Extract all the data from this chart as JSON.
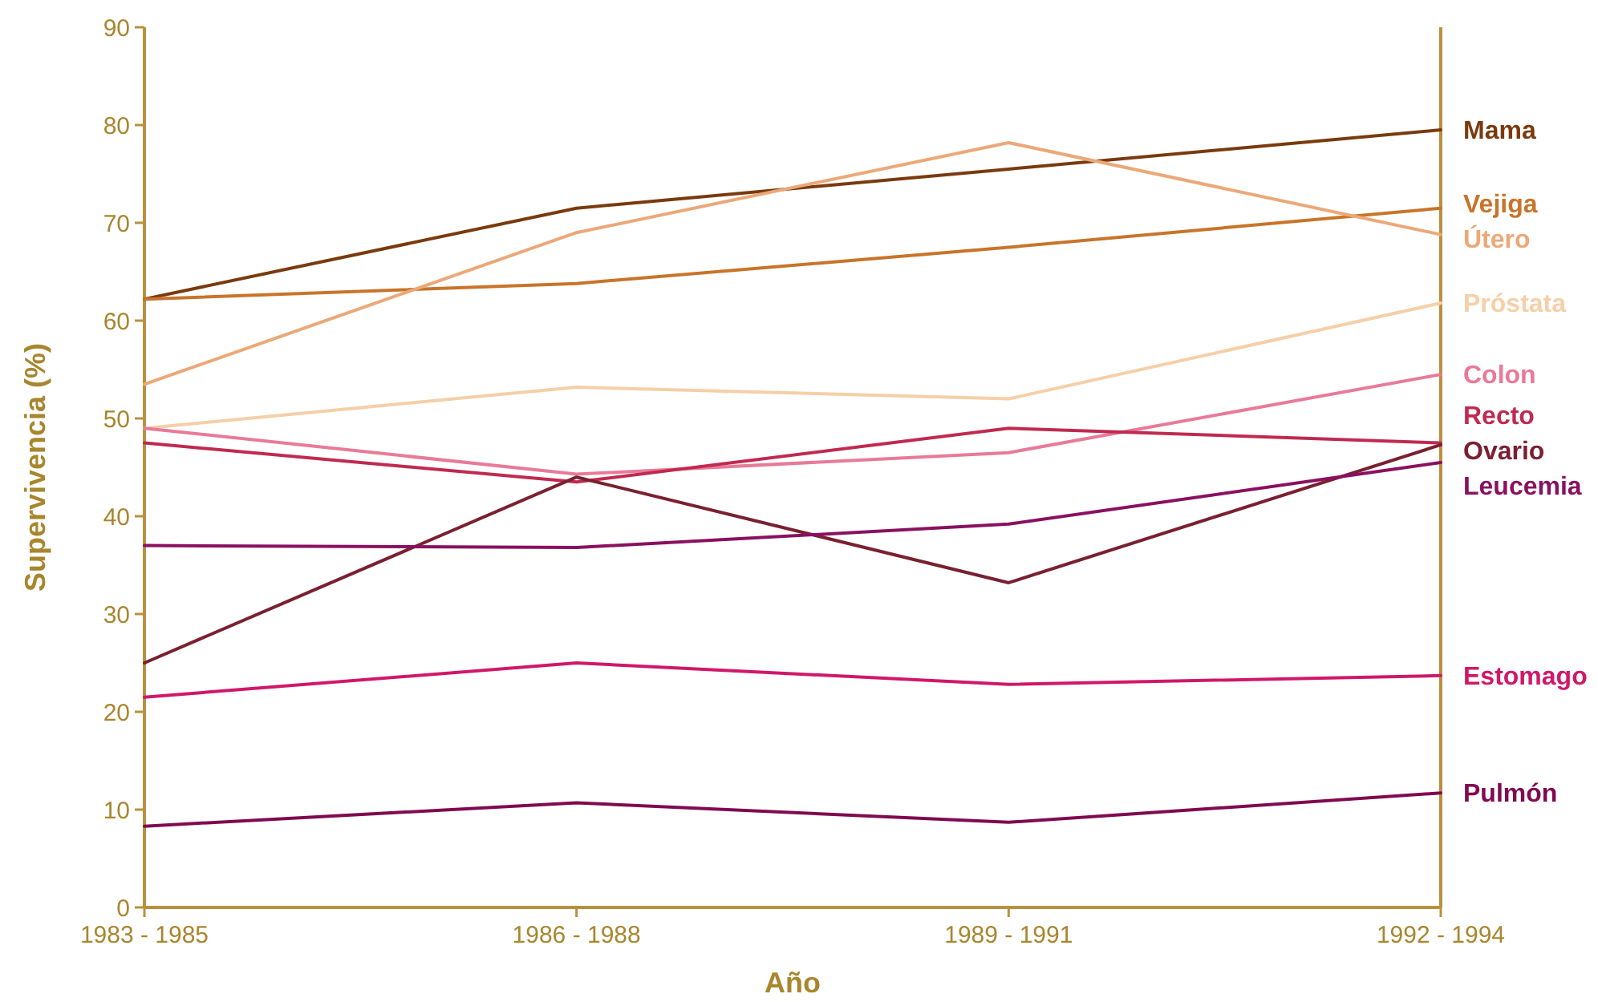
{
  "chart_data": {
    "type": "line",
    "xlabel": "Año",
    "ylabel": "Supervivencia  (%)",
    "categories": [
      "1983 - 1985",
      "1986 - 1988",
      "1989 - 1991",
      "1992 - 1994"
    ],
    "ylim": [
      0,
      90
    ],
    "yticks": [
      0,
      10,
      20,
      30,
      40,
      50,
      60,
      70,
      80,
      90
    ],
    "grid": false,
    "legend": false,
    "marker": "none",
    "line_style": "solid",
    "series": [
      {
        "name": "Mama",
        "color": "#7a3a0e",
        "values": [
          62.2,
          71.5,
          75.5,
          79.5
        ]
      },
      {
        "name": "Vejiga",
        "color": "#c8742a",
        "values": [
          62.2,
          63.8,
          67.5,
          71.5
        ]
      },
      {
        "name": "Útero",
        "color": "#eba878",
        "values": [
          53.5,
          69,
          78.2,
          68.8
        ]
      },
      {
        "name": "Próstata",
        "color": "#f5cfa8",
        "values": [
          49,
          53.2,
          52,
          61.8
        ]
      },
      {
        "name": "Colon",
        "color": "#e87a98",
        "values": [
          49,
          44.3,
          46.5,
          54.5
        ]
      },
      {
        "name": "Recto",
        "color": "#c02a50",
        "values": [
          47.5,
          43.5,
          49,
          47.5
        ]
      },
      {
        "name": "Ovario",
        "color": "#7a2030",
        "values": [
          25,
          44,
          33.2,
          47.3
        ]
      },
      {
        "name": "Leucemia",
        "color": "#8a1060",
        "values": [
          37,
          36.8,
          39.2,
          45.5
        ]
      },
      {
        "name": "Estomago",
        "color": "#d0186a",
        "values": [
          21.5,
          25,
          22.8,
          23.7
        ]
      },
      {
        "name": "Pulmón",
        "color": "#800a50",
        "values": [
          8.3,
          10.7,
          8.7,
          11.7
        ]
      }
    ]
  }
}
